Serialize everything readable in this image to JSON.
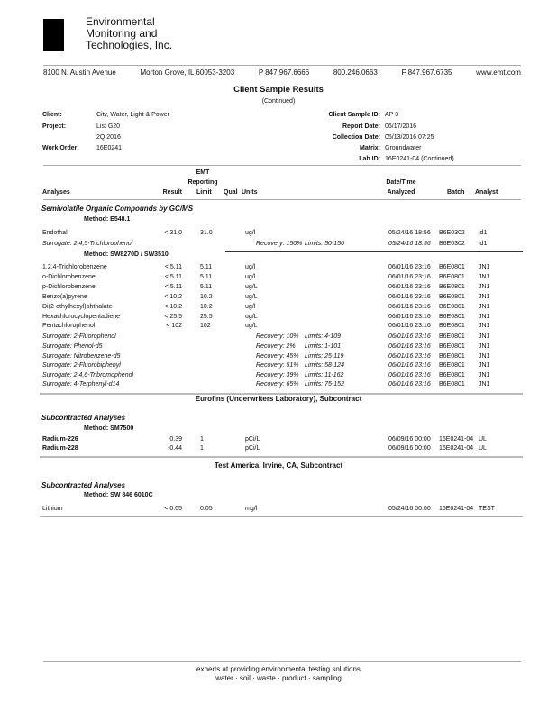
{
  "company": {
    "lines": [
      "Environmental",
      "Monitoring and",
      "Technologies, Inc."
    ]
  },
  "address": {
    "street": "8100 N. Austin Avenue",
    "city": "Morton Grove, IL 60053-3203",
    "phone": "P 847.967.6666",
    "tollfree": "800.246.0663",
    "fax": "F 847.967.6735",
    "web": "www.emt.com"
  },
  "title": "Client Sample Results",
  "subtitle": "(Continued)",
  "info_left": [
    {
      "label": "Client:",
      "value": "City, Water, Light & Power"
    },
    {
      "label": "Project:",
      "value": "List G20"
    },
    {
      "label": "",
      "value": "2Q 2016"
    },
    {
      "label": "Work Order:",
      "value": "16E0241"
    }
  ],
  "info_right": [
    {
      "label": "Client Sample ID:",
      "value": "AP 3"
    },
    {
      "label": "Report Date:",
      "value": "06/17/2016"
    },
    {
      "label": "Collection Date:",
      "value": "05/13/2016 07:25"
    },
    {
      "label": "Matrix:",
      "value": "Groundwater"
    },
    {
      "label": "Lab ID:",
      "value": "16E0241-04 (Continued)"
    }
  ],
  "columns": {
    "emt": "EMT",
    "reporting": "Reporting",
    "analyses": "Analyses",
    "result": "Result",
    "limit": "Limit",
    "qual": "Qual",
    "units": "Units",
    "datetime": "Date/Time",
    "analyzed": "Analyzed",
    "batch": "Batch",
    "analyst": "Analyst"
  },
  "sections": {
    "svoc": "Semivolatile Organic Compounds by GC/MS",
    "eurofins": "Eurofins (Underwriters Laboratory), Subcontract",
    "sub1": "Subcontracted Analyses",
    "testamerica": "Test America, Irvine, CA, Subcontract",
    "sub2": "Subcontracted Analyses"
  },
  "methods": [
    "Method:  E548.1",
    "Method:  SW8270D / SW3510",
    "Method:  SM7500",
    "Method:  SW 846 6010C"
  ],
  "rows": [
    {
      "analyte": "Endothall",
      "result": "< 31.0",
      "limit": "31.0",
      "units": "ug/l",
      "date": "05/24/16 18:56",
      "batch": "B6E0302",
      "analyst": "jd1"
    },
    {
      "analyte": "Surrogate: 2,4,5-Trichlorophenol",
      "recovery": "Recovery: 150%",
      "limits": "Limits: 50-150",
      "date": "05/24/16 18:56",
      "batch": "B6E0302",
      "analyst": "jd1",
      "surrogate": true
    },
    {
      "analyte": "1,2,4-Trichlorobenzene",
      "result": "< 5.11",
      "limit": "5.11",
      "units": "ug/l",
      "date": "06/01/16 23:16",
      "batch": "B6E0801",
      "analyst": "JN1"
    },
    {
      "analyte": "o-Dichlorobenzene",
      "result": "< 5.11",
      "limit": "5.11",
      "units": "ug/l",
      "date": "06/01/16 23:16",
      "batch": "B6E0801",
      "analyst": "JN1"
    },
    {
      "analyte": "p-Dichlorobenzene",
      "result": "< 5.11",
      "limit": "5.11",
      "units": "ug/L",
      "date": "06/01/16 23:16",
      "batch": "B6E0801",
      "analyst": "JN1"
    },
    {
      "analyte": "Benzo(a)pyrene",
      "result": "< 10.2",
      "limit": "10.2",
      "units": "ug/L",
      "date": "06/01/16 23:16",
      "batch": "B6E0801",
      "analyst": "JN1"
    },
    {
      "analyte": "Di(2-ethylhexyl)phthalate",
      "result": "< 10.2",
      "limit": "10.2",
      "units": "ug/l",
      "date": "06/01/16 23:16",
      "batch": "B6E0801",
      "analyst": "JN1"
    },
    {
      "analyte": "Hexachlorocyclopentadiene",
      "result": "< 25.5",
      "limit": "25.5",
      "units": "ug/L",
      "date": "06/01/16 23:16",
      "batch": "B6E0801",
      "analyst": "JN1"
    },
    {
      "analyte": "Pentachlorophenol",
      "result": "< 102",
      "limit": "102",
      "units": "ug/L",
      "date": "06/01/16 23:16",
      "batch": "B6E0801",
      "analyst": "JN1"
    },
    {
      "analyte": "Surrogate: 2-Fluorophenol",
      "recovery": "Recovery: 10%",
      "limits": "Limits: 4-109",
      "date": "06/01/16 23:16",
      "batch": "B6E0801",
      "analyst": "JN1",
      "surrogate": true
    },
    {
      "analyte": "Surrogate: Phenol-d5",
      "recovery": "Recovery: 2%",
      "limits": "Limits: 1-101",
      "date": "06/01/16 23:16",
      "batch": "B6E0801",
      "analyst": "JN1",
      "surrogate": true
    },
    {
      "analyte": "Surrogate: Nitrobenzene-d5",
      "recovery": "Recovery: 45%",
      "limits": "Limits: 25-119",
      "date": "06/01/16 23:16",
      "batch": "B6E0801",
      "analyst": "JN1",
      "surrogate": true
    },
    {
      "analyte": "Surrogate: 2-Fluorobiphenyl",
      "recovery": "Recovery: 51%",
      "limits": "Limits: 58-124",
      "date": "06/01/16 23:16",
      "batch": "B6E0801",
      "analyst": "JN1",
      "surrogate": true
    },
    {
      "analyte": "Surrogate: 2,4,6-Tribromophenol",
      "recovery": "Recovery: 39%",
      "limits": "Limits: 11-162",
      "date": "06/01/16 23:16",
      "batch": "B6E0801",
      "analyst": "JN1",
      "surrogate": true
    },
    {
      "analyte": "Surrogate: 4-Terphenyl-d14",
      "recovery": "Recovery: 65%",
      "limits": "Limits: 75-152",
      "date": "06/01/16 23:16",
      "batch": "B6E0801",
      "analyst": "JN1",
      "surrogate": true
    },
    {
      "analyte": "Radium-226",
      "result": "0.39",
      "limit": "1",
      "units": "pCi/L",
      "date": "06/09/16 00:00",
      "batch": "16E0241-04",
      "analyst": "UL",
      "bold": true
    },
    {
      "analyte": "Radium-228",
      "result": "-0.44",
      "limit": "1",
      "units": "pCi/L",
      "date": "06/09/16 00:00",
      "batch": "16E0241-04",
      "analyst": "UL",
      "bold": true
    },
    {
      "analyte": "Lithium",
      "result": "< 0.05",
      "limit": "0.05",
      "units": "mg/l",
      "date": "05/24/16 00:00",
      "batch": "16E0241-04",
      "analyst": "TEST"
    }
  ],
  "footer": {
    "tagline": "experts at providing environmental testing solutions",
    "services": "water  ·  soil  ·  waste  ·  product  ·  sampling"
  }
}
